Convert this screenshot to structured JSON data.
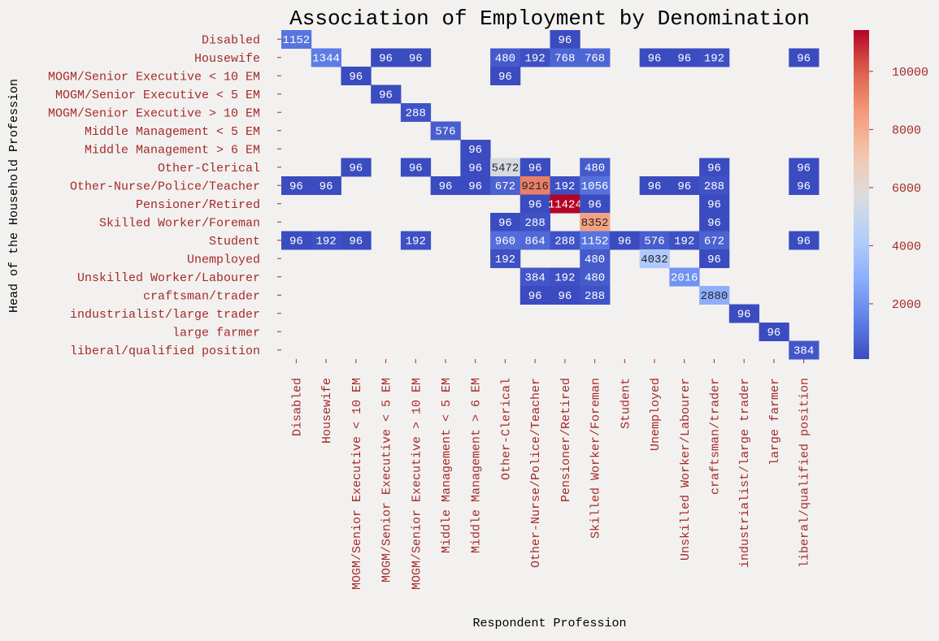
{
  "chart_data": {
    "type": "heatmap",
    "title": "Association of Employment by Denomination",
    "xlabel": "Respondent Profession",
    "ylabel": "Head of the Household Profession",
    "x_categories": [
      "Disabled",
      "Housewife",
      "MOGM/Senior Executive < 10 EM",
      "MOGM/Senior Executive < 5 EM",
      "MOGM/Senior Executive > 10 EM",
      "Middle Management < 5 EM",
      "Middle Management > 6 EM",
      "Other-Clerical",
      "Other-Nurse/Police/Teacher",
      "Pensioner/Retired",
      "Skilled Worker/Foreman",
      "Student",
      "Unemployed",
      "Unskilled Worker/Labourer",
      "craftsman/trader",
      "industrialist/large trader",
      "large farmer",
      "liberal/qualified position"
    ],
    "y_categories": [
      "Disabled",
      "Housewife",
      "MOGM/Senior Executive < 10 EM",
      "MOGM/Senior Executive < 5 EM",
      "MOGM/Senior Executive > 10 EM",
      "Middle Management < 5 EM",
      "Middle Management > 6 EM",
      "Other-Clerical",
      "Other-Nurse/Police/Teacher",
      "Pensioner/Retired",
      "Skilled Worker/Foreman",
      "Student",
      "Unemployed",
      "Unskilled Worker/Labourer",
      "craftsman/trader",
      "industrialist/large trader",
      "large farmer",
      "liberal/qualified position"
    ],
    "values": [
      [
        1152,
        null,
        null,
        null,
        null,
        null,
        null,
        null,
        null,
        96,
        null,
        null,
        null,
        null,
        null,
        null,
        null,
        null
      ],
      [
        null,
        1344,
        null,
        96,
        96,
        null,
        null,
        480,
        192,
        768,
        768,
        null,
        96,
        96,
        192,
        null,
        null,
        96
      ],
      [
        null,
        null,
        96,
        null,
        null,
        null,
        null,
        96,
        null,
        null,
        null,
        null,
        null,
        null,
        null,
        null,
        null,
        null
      ],
      [
        null,
        null,
        null,
        96,
        null,
        null,
        null,
        null,
        null,
        null,
        null,
        null,
        null,
        null,
        null,
        null,
        null,
        null
      ],
      [
        null,
        null,
        null,
        null,
        288,
        null,
        null,
        null,
        null,
        null,
        null,
        null,
        null,
        null,
        null,
        null,
        null,
        null
      ],
      [
        null,
        null,
        null,
        null,
        null,
        576,
        null,
        null,
        null,
        null,
        null,
        null,
        null,
        null,
        null,
        null,
        null,
        null
      ],
      [
        null,
        null,
        null,
        null,
        null,
        null,
        96,
        null,
        null,
        null,
        null,
        null,
        null,
        null,
        null,
        null,
        null,
        null
      ],
      [
        null,
        null,
        96,
        null,
        96,
        null,
        96,
        5472,
        96,
        null,
        480,
        null,
        null,
        null,
        96,
        null,
        null,
        96
      ],
      [
        96,
        96,
        null,
        null,
        null,
        96,
        96,
        672,
        9216,
        192,
        1056,
        null,
        96,
        96,
        288,
        null,
        null,
        96
      ],
      [
        null,
        null,
        null,
        null,
        null,
        null,
        null,
        null,
        96,
        11424,
        96,
        null,
        null,
        null,
        96,
        null,
        null,
        null
      ],
      [
        null,
        null,
        null,
        null,
        null,
        null,
        null,
        96,
        288,
        null,
        8352,
        null,
        null,
        null,
        96,
        null,
        null,
        null
      ],
      [
        96,
        192,
        96,
        null,
        192,
        null,
        null,
        960,
        864,
        288,
        1152,
        96,
        576,
        192,
        672,
        null,
        null,
        96
      ],
      [
        null,
        null,
        null,
        null,
        null,
        null,
        null,
        192,
        null,
        null,
        480,
        null,
        4032,
        null,
        96,
        null,
        null,
        null
      ],
      [
        null,
        null,
        null,
        null,
        null,
        null,
        null,
        null,
        384,
        192,
        480,
        null,
        null,
        2016,
        null,
        null,
        null,
        null
      ],
      [
        null,
        null,
        null,
        null,
        null,
        null,
        null,
        null,
        96,
        96,
        288,
        null,
        null,
        null,
        2880,
        null,
        null,
        null
      ],
      [
        null,
        null,
        null,
        null,
        null,
        null,
        null,
        null,
        null,
        null,
        null,
        null,
        null,
        null,
        null,
        96,
        null,
        null
      ],
      [
        null,
        null,
        null,
        null,
        null,
        null,
        null,
        null,
        null,
        null,
        null,
        null,
        null,
        null,
        null,
        null,
        96,
        null
      ],
      [
        null,
        null,
        null,
        null,
        null,
        null,
        null,
        null,
        null,
        null,
        null,
        null,
        null,
        null,
        null,
        null,
        null,
        384
      ]
    ],
    "colormap": "coolwarm",
    "vmin": 96,
    "vmax": 11424,
    "colorbar_ticks": [
      2000,
      4000,
      6000,
      8000,
      10000
    ],
    "grid": false
  },
  "colors": {
    "background": "#f2f1ef",
    "tick_label": "#a52a2a",
    "axis_label": "#000000",
    "title": "#000000"
  }
}
